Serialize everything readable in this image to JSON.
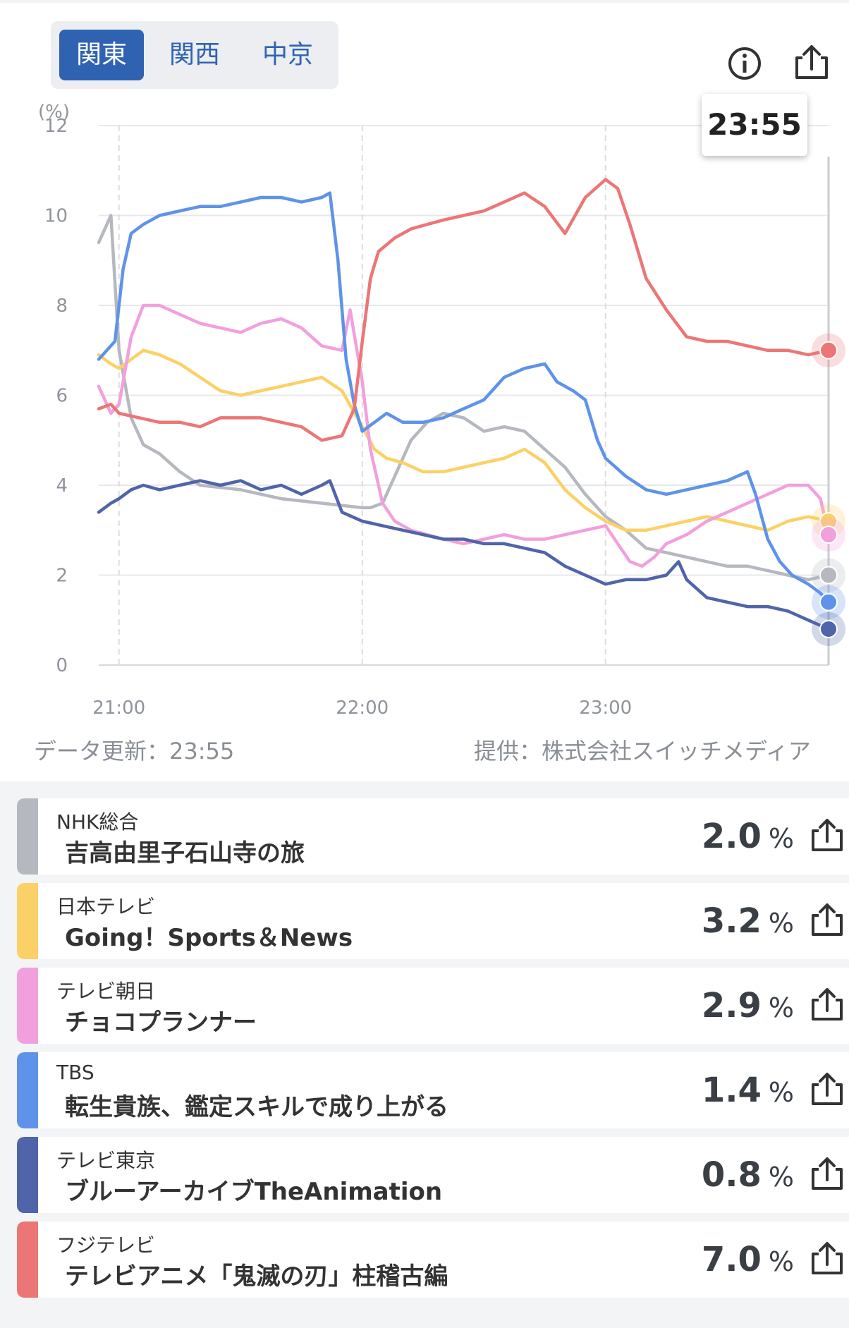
{
  "region_tabs": [
    "関東",
    "関西",
    "中京"
  ],
  "active_region": "関東",
  "icons": {
    "info": "info-icon",
    "share": "share-icon"
  },
  "tooltip_time": "23:55",
  "footer": {
    "updated": "データ更新：23:55",
    "provider": "提供：株式会社スイッチメディア"
  },
  "chart_data": {
    "type": "line",
    "ylabel": "(%)",
    "ylim": [
      0,
      12
    ],
    "yticks": [
      0,
      2,
      4,
      6,
      8,
      10,
      12
    ],
    "xlim": [
      "20:55",
      "23:55"
    ],
    "xticks": [
      "21:00",
      "22:00",
      "23:00"
    ],
    "grid": true,
    "cursor_time": "23:55",
    "series": [
      {
        "name": "NHK総合",
        "color": "#b5b9bf",
        "points": [
          [
            "20:55",
            9.4
          ],
          [
            "20:58",
            10.0
          ],
          [
            "21:00",
            7.0
          ],
          [
            "21:03",
            5.5
          ],
          [
            "21:06",
            4.9
          ],
          [
            "21:10",
            4.7
          ],
          [
            "21:15",
            4.3
          ],
          [
            "21:20",
            4.0
          ],
          [
            "21:30",
            3.9
          ],
          [
            "21:40",
            3.7
          ],
          [
            "21:50",
            3.6
          ],
          [
            "22:00",
            3.5
          ],
          [
            "22:02",
            3.5
          ],
          [
            "22:05",
            3.6
          ],
          [
            "22:08",
            4.2
          ],
          [
            "22:12",
            5.0
          ],
          [
            "22:16",
            5.4
          ],
          [
            "22:20",
            5.6
          ],
          [
            "22:25",
            5.5
          ],
          [
            "22:30",
            5.2
          ],
          [
            "22:35",
            5.3
          ],
          [
            "22:40",
            5.2
          ],
          [
            "22:45",
            4.8
          ],
          [
            "22:50",
            4.4
          ],
          [
            "22:55",
            3.8
          ],
          [
            "23:00",
            3.3
          ],
          [
            "23:05",
            3.0
          ],
          [
            "23:10",
            2.6
          ],
          [
            "23:15",
            2.5
          ],
          [
            "23:20",
            2.4
          ],
          [
            "23:25",
            2.3
          ],
          [
            "23:30",
            2.2
          ],
          [
            "23:35",
            2.2
          ],
          [
            "23:40",
            2.1
          ],
          [
            "23:45",
            2.0
          ],
          [
            "23:50",
            1.9
          ],
          [
            "23:55",
            2.0
          ]
        ]
      },
      {
        "name": "日本テレビ",
        "color": "#fbd167",
        "points": [
          [
            "20:55",
            6.9
          ],
          [
            "20:58",
            6.7
          ],
          [
            "21:00",
            6.6
          ],
          [
            "21:03",
            6.8
          ],
          [
            "21:06",
            7.0
          ],
          [
            "21:10",
            6.9
          ],
          [
            "21:15",
            6.7
          ],
          [
            "21:20",
            6.4
          ],
          [
            "21:25",
            6.1
          ],
          [
            "21:30",
            6.0
          ],
          [
            "21:35",
            6.1
          ],
          [
            "21:40",
            6.2
          ],
          [
            "21:45",
            6.3
          ],
          [
            "21:50",
            6.4
          ],
          [
            "21:55",
            6.1
          ],
          [
            "22:00",
            5.3
          ],
          [
            "22:03",
            4.8
          ],
          [
            "22:06",
            4.6
          ],
          [
            "22:10",
            4.5
          ],
          [
            "22:15",
            4.3
          ],
          [
            "22:20",
            4.3
          ],
          [
            "22:25",
            4.4
          ],
          [
            "22:30",
            4.5
          ],
          [
            "22:35",
            4.6
          ],
          [
            "22:40",
            4.8
          ],
          [
            "22:45",
            4.5
          ],
          [
            "22:50",
            3.9
          ],
          [
            "22:55",
            3.5
          ],
          [
            "23:00",
            3.2
          ],
          [
            "23:05",
            3.0
          ],
          [
            "23:10",
            3.0
          ],
          [
            "23:15",
            3.1
          ],
          [
            "23:20",
            3.2
          ],
          [
            "23:25",
            3.3
          ],
          [
            "23:30",
            3.2
          ],
          [
            "23:35",
            3.1
          ],
          [
            "23:40",
            3.0
          ],
          [
            "23:45",
            3.2
          ],
          [
            "23:50",
            3.3
          ],
          [
            "23:55",
            3.2
          ]
        ]
      },
      {
        "name": "テレビ朝日",
        "color": "#f2a0dd",
        "points": [
          [
            "20:55",
            6.2
          ],
          [
            "20:58",
            5.6
          ],
          [
            "21:00",
            5.8
          ],
          [
            "21:03",
            7.3
          ],
          [
            "21:06",
            8.0
          ],
          [
            "21:10",
            8.0
          ],
          [
            "21:15",
            7.8
          ],
          [
            "21:20",
            7.6
          ],
          [
            "21:25",
            7.5
          ],
          [
            "21:30",
            7.4
          ],
          [
            "21:35",
            7.6
          ],
          [
            "21:40",
            7.7
          ],
          [
            "21:45",
            7.5
          ],
          [
            "21:50",
            7.1
          ],
          [
            "21:55",
            7.0
          ],
          [
            "21:57",
            7.9
          ],
          [
            "22:00",
            6.3
          ],
          [
            "22:02",
            4.8
          ],
          [
            "22:05",
            3.6
          ],
          [
            "22:08",
            3.2
          ],
          [
            "22:12",
            3.0
          ],
          [
            "22:16",
            2.9
          ],
          [
            "22:20",
            2.8
          ],
          [
            "22:25",
            2.7
          ],
          [
            "22:30",
            2.8
          ],
          [
            "22:35",
            2.9
          ],
          [
            "22:40",
            2.8
          ],
          [
            "22:45",
            2.8
          ],
          [
            "22:50",
            2.9
          ],
          [
            "22:55",
            3.0
          ],
          [
            "23:00",
            3.1
          ],
          [
            "23:03",
            2.7
          ],
          [
            "23:06",
            2.3
          ],
          [
            "23:09",
            2.2
          ],
          [
            "23:12",
            2.4
          ],
          [
            "23:15",
            2.7
          ],
          [
            "23:20",
            2.9
          ],
          [
            "23:25",
            3.2
          ],
          [
            "23:30",
            3.4
          ],
          [
            "23:35",
            3.6
          ],
          [
            "23:40",
            3.8
          ],
          [
            "23:45",
            4.0
          ],
          [
            "23:50",
            4.0
          ],
          [
            "23:53",
            3.7
          ],
          [
            "23:55",
            2.9
          ]
        ]
      },
      {
        "name": "TBS",
        "color": "#5f93e9",
        "points": [
          [
            "20:55",
            6.8
          ],
          [
            "20:57",
            7.0
          ],
          [
            "20:59",
            7.2
          ],
          [
            "21:01",
            8.8
          ],
          [
            "21:03",
            9.6
          ],
          [
            "21:06",
            9.8
          ],
          [
            "21:10",
            10.0
          ],
          [
            "21:15",
            10.1
          ],
          [
            "21:20",
            10.2
          ],
          [
            "21:25",
            10.2
          ],
          [
            "21:30",
            10.3
          ],
          [
            "21:35",
            10.4
          ],
          [
            "21:40",
            10.4
          ],
          [
            "21:45",
            10.3
          ],
          [
            "21:50",
            10.4
          ],
          [
            "21:52",
            10.5
          ],
          [
            "21:54",
            9.0
          ],
          [
            "21:56",
            6.8
          ],
          [
            "21:58",
            5.8
          ],
          [
            "22:00",
            5.2
          ],
          [
            "22:03",
            5.4
          ],
          [
            "22:06",
            5.6
          ],
          [
            "22:10",
            5.4
          ],
          [
            "22:15",
            5.4
          ],
          [
            "22:20",
            5.5
          ],
          [
            "22:25",
            5.7
          ],
          [
            "22:30",
            5.9
          ],
          [
            "22:35",
            6.4
          ],
          [
            "22:40",
            6.6
          ],
          [
            "22:45",
            6.7
          ],
          [
            "22:48",
            6.3
          ],
          [
            "22:52",
            6.1
          ],
          [
            "22:55",
            5.9
          ],
          [
            "22:58",
            5.0
          ],
          [
            "23:00",
            4.6
          ],
          [
            "23:05",
            4.2
          ],
          [
            "23:10",
            3.9
          ],
          [
            "23:15",
            3.8
          ],
          [
            "23:20",
            3.9
          ],
          [
            "23:25",
            4.0
          ],
          [
            "23:30",
            4.1
          ],
          [
            "23:35",
            4.3
          ],
          [
            "23:37",
            3.8
          ],
          [
            "23:40",
            2.8
          ],
          [
            "23:43",
            2.3
          ],
          [
            "23:46",
            2.0
          ],
          [
            "23:50",
            1.8
          ],
          [
            "23:53",
            1.6
          ],
          [
            "23:55",
            1.4
          ]
        ]
      },
      {
        "name": "テレビ東京",
        "color": "#5064a9",
        "points": [
          [
            "20:55",
            3.4
          ],
          [
            "20:58",
            3.6
          ],
          [
            "21:00",
            3.7
          ],
          [
            "21:03",
            3.9
          ],
          [
            "21:06",
            4.0
          ],
          [
            "21:10",
            3.9
          ],
          [
            "21:15",
            4.0
          ],
          [
            "21:20",
            4.1
          ],
          [
            "21:25",
            4.0
          ],
          [
            "21:30",
            4.1
          ],
          [
            "21:35",
            3.9
          ],
          [
            "21:40",
            4.0
          ],
          [
            "21:45",
            3.8
          ],
          [
            "21:50",
            4.0
          ],
          [
            "21:52",
            4.1
          ],
          [
            "21:55",
            3.4
          ],
          [
            "22:00",
            3.2
          ],
          [
            "22:05",
            3.1
          ],
          [
            "22:10",
            3.0
          ],
          [
            "22:15",
            2.9
          ],
          [
            "22:20",
            2.8
          ],
          [
            "22:25",
            2.8
          ],
          [
            "22:30",
            2.7
          ],
          [
            "22:35",
            2.7
          ],
          [
            "22:40",
            2.6
          ],
          [
            "22:45",
            2.5
          ],
          [
            "22:50",
            2.2
          ],
          [
            "22:55",
            2.0
          ],
          [
            "23:00",
            1.8
          ],
          [
            "23:05",
            1.9
          ],
          [
            "23:10",
            1.9
          ],
          [
            "23:15",
            2.0
          ],
          [
            "23:18",
            2.3
          ],
          [
            "23:20",
            1.9
          ],
          [
            "23:25",
            1.5
          ],
          [
            "23:30",
            1.4
          ],
          [
            "23:35",
            1.3
          ],
          [
            "23:40",
            1.3
          ],
          [
            "23:45",
            1.2
          ],
          [
            "23:50",
            1.0
          ],
          [
            "23:55",
            0.8
          ]
        ]
      },
      {
        "name": "フジテレビ",
        "color": "#ec7676",
        "points": [
          [
            "20:55",
            5.7
          ],
          [
            "20:58",
            5.8
          ],
          [
            "21:00",
            5.6
          ],
          [
            "21:05",
            5.5
          ],
          [
            "21:10",
            5.4
          ],
          [
            "21:15",
            5.4
          ],
          [
            "21:20",
            5.3
          ],
          [
            "21:25",
            5.5
          ],
          [
            "21:30",
            5.5
          ],
          [
            "21:35",
            5.5
          ],
          [
            "21:40",
            5.4
          ],
          [
            "21:45",
            5.3
          ],
          [
            "21:50",
            5.0
          ],
          [
            "21:55",
            5.1
          ],
          [
            "21:58",
            5.7
          ],
          [
            "22:00",
            7.2
          ],
          [
            "22:02",
            8.6
          ],
          [
            "22:04",
            9.2
          ],
          [
            "22:08",
            9.5
          ],
          [
            "22:12",
            9.7
          ],
          [
            "22:16",
            9.8
          ],
          [
            "22:20",
            9.9
          ],
          [
            "22:25",
            10.0
          ],
          [
            "22:30",
            10.1
          ],
          [
            "22:35",
            10.3
          ],
          [
            "22:40",
            10.5
          ],
          [
            "22:45",
            10.2
          ],
          [
            "22:50",
            9.6
          ],
          [
            "22:55",
            10.4
          ],
          [
            "23:00",
            10.8
          ],
          [
            "23:03",
            10.6
          ],
          [
            "23:06",
            9.8
          ],
          [
            "23:10",
            8.6
          ],
          [
            "23:15",
            7.9
          ],
          [
            "23:20",
            7.3
          ],
          [
            "23:25",
            7.2
          ],
          [
            "23:30",
            7.2
          ],
          [
            "23:35",
            7.1
          ],
          [
            "23:40",
            7.0
          ],
          [
            "23:45",
            7.0
          ],
          [
            "23:50",
            6.9
          ],
          [
            "23:55",
            7.0
          ]
        ]
      }
    ]
  },
  "list": [
    {
      "channel": "NHK総合",
      "title": "吉高由里子石山寺の旅",
      "value": "2.0",
      "unit": "%",
      "color": "#b5b9bf"
    },
    {
      "channel": "日本テレビ",
      "title": "Going！Sports＆News",
      "value": "3.2",
      "unit": "%",
      "color": "#fbd167"
    },
    {
      "channel": "テレビ朝日",
      "title": "チョコプランナー",
      "value": "2.9",
      "unit": "%",
      "color": "#f2a0dd"
    },
    {
      "channel": "TBS",
      "title": "転生貴族、鑑定スキルで成り上がる",
      "value": "1.4",
      "unit": "%",
      "color": "#5f93e9"
    },
    {
      "channel": "テレビ東京",
      "title": "ブルーアーカイブTheAnimation",
      "value": "0.8",
      "unit": "%",
      "color": "#5064a9"
    },
    {
      "channel": "フジテレビ",
      "title": "テレビアニメ「鬼滅の刃」柱稽古編",
      "value": "7.0",
      "unit": "%",
      "color": "#ec7676"
    }
  ]
}
